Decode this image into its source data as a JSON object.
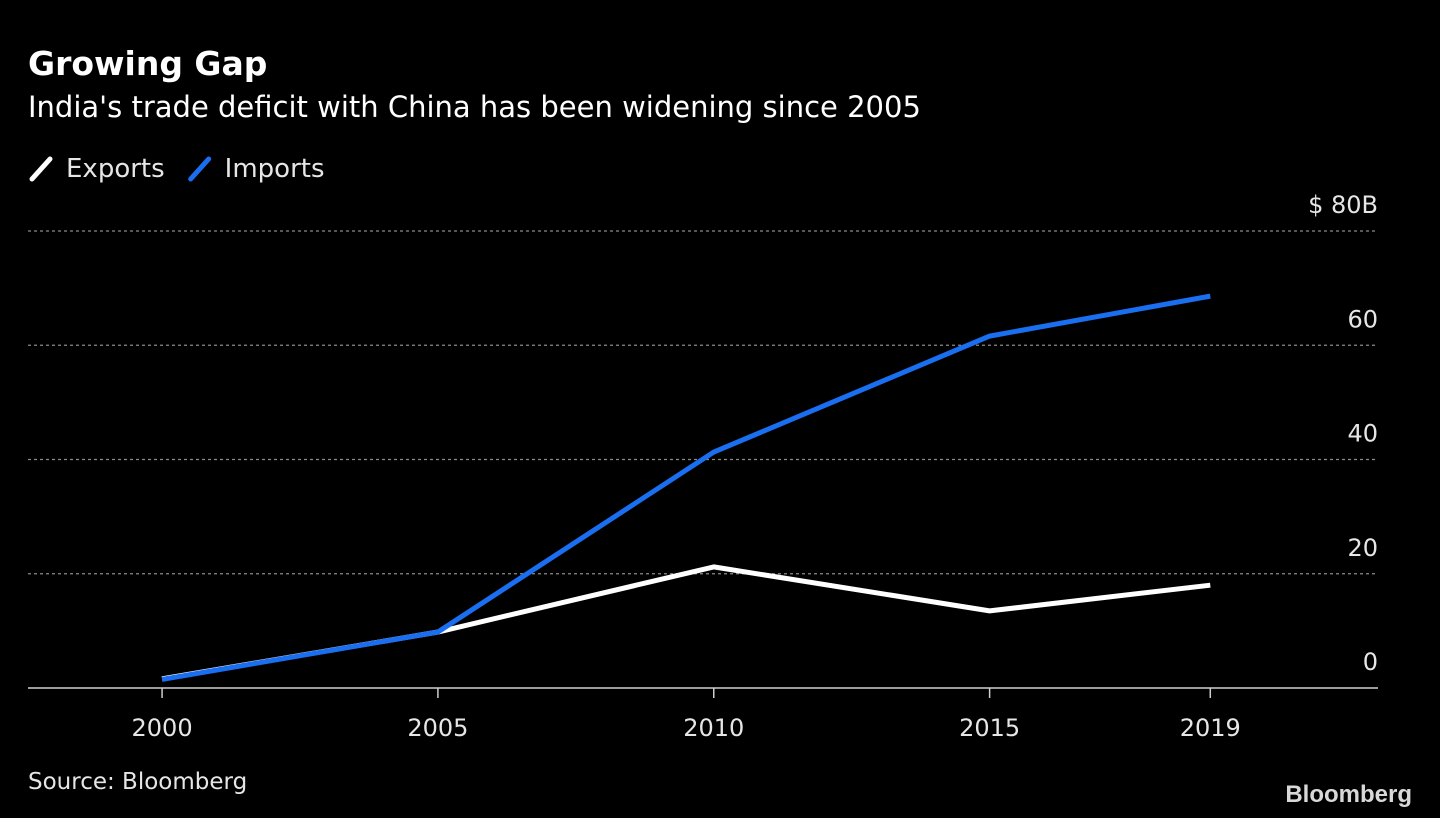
{
  "chart_data": {
    "type": "line",
    "title": "Growing Gap",
    "subtitle": "India's trade deficit with China has been widening since 2005",
    "source": "Source: Bloomberg",
    "brand": "Bloomberg",
    "x": [
      2000,
      2005,
      2010,
      2015,
      2019
    ],
    "series": [
      {
        "name": "Exports",
        "color": "#ffffff",
        "values": [
          1.6,
          9.8,
          21.2,
          13.5,
          18.0
        ]
      },
      {
        "name": "Imports",
        "color": "#1a6ef0",
        "values": [
          1.5,
          9.8,
          41.3,
          61.6,
          68.6
        ]
      }
    ],
    "xlim": [
      1997.57,
      2022.04
    ],
    "xticks": [
      2000,
      2005,
      2010,
      2015,
      2019
    ],
    "ylim": [
      0,
      80
    ],
    "yticks": [
      0,
      20,
      40,
      60,
      {
        "value": 80,
        "label": "$ 80B"
      }
    ],
    "grid": true,
    "legend": "top-left"
  }
}
